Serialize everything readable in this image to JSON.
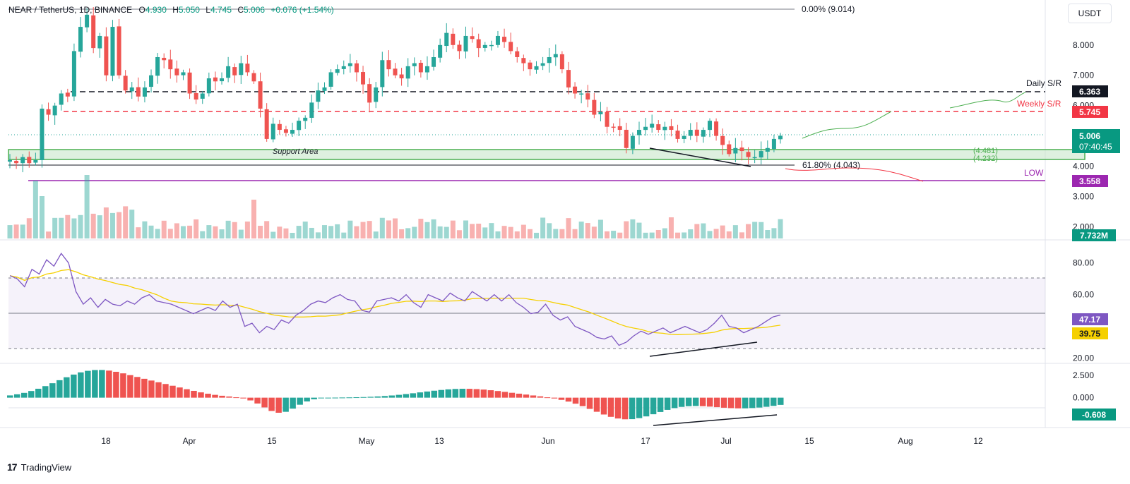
{
  "header": {
    "symbol": "NEAR / TetherUS, 1D, BINANCE",
    "o_label": "O",
    "o": "4.930",
    "h_label": "H",
    "h": "5.050",
    "l_label": "L",
    "l": "4.745",
    "c_label": "C",
    "c": "5.006",
    "change": "+0.076 (+1.54%)"
  },
  "currency_button": "USDT",
  "footer": {
    "brand": "TradingView"
  },
  "colors": {
    "up": "#26a69a",
    "down": "#ef5350",
    "teal_dark": "#089981",
    "rsi": "#7e57c2",
    "rsi_ma": "#f5d000",
    "support": "#4caf50",
    "weekly": "#f23645",
    "low": "#9c27b0"
  },
  "chart_data": [
    {
      "type": "candlestick",
      "panel": "price",
      "price_axis": [
        "8.000",
        "7.000",
        "6.000",
        "5.000",
        "4.000",
        "3.000",
        "2.000"
      ],
      "ylim": [
        1.8,
        9.3
      ],
      "x_ticks": [
        "18",
        "Apr",
        "15",
        "May",
        "13",
        "Jun",
        "17",
        "Jul",
        "15",
        "Aug",
        "12"
      ],
      "close_path": [
        4.2,
        4.1,
        4.3,
        4.1,
        4.2,
        5.9,
        5.7,
        6.0,
        6.4,
        6.3,
        7.8,
        8.6,
        9.0,
        7.9,
        8.3,
        7.0,
        8.6,
        7.0,
        6.5,
        6.6,
        6.3,
        6.6,
        7.0,
        7.6,
        7.5,
        7.2,
        7.0,
        7.1,
        6.4,
        6.2,
        6.4,
        6.9,
        6.8,
        6.9,
        7.3,
        7.0,
        7.4,
        7.1,
        6.8,
        5.9,
        4.9,
        5.4,
        5.2,
        5.1,
        5.2,
        5.5,
        5.6,
        6.1,
        6.5,
        6.6,
        7.1,
        7.2,
        7.3,
        7.4,
        7.1,
        6.7,
        6.1,
        6.6,
        7.5,
        7.2,
        7.0,
        6.9,
        7.3,
        7.4,
        7.1,
        7.3,
        7.6,
        8.0,
        8.4,
        8.0,
        7.8,
        8.3,
        8.2,
        7.9,
        8.0,
        8.0,
        8.3,
        8.1,
        7.8,
        7.6,
        7.4,
        7.2,
        7.3,
        7.4,
        7.6,
        7.7,
        7.2,
        6.6,
        6.4,
        6.4,
        6.2,
        5.7,
        5.8,
        5.3,
        5.3,
        5.2,
        4.6,
        5.0,
        5.2,
        5.3,
        5.4,
        5.2,
        5.3,
        5.2,
        4.9,
        5.0,
        5.2,
        5.0,
        5.2,
        5.5,
        5.0,
        4.7,
        4.4,
        4.6,
        4.5,
        4.3,
        4.3,
        4.5,
        4.6,
        4.9,
        5.006
      ],
      "candles": 121,
      "levels": [
        {
          "name": "fib-0",
          "label": "0.00% (9.014)",
          "value": 9.014
        },
        {
          "name": "daily-sr",
          "label": "Daily S/R",
          "value": 6.363,
          "badge": "6.363"
        },
        {
          "name": "weekly-sr",
          "label": "Weekly S/R",
          "value": 5.745,
          "badge": "5.745"
        },
        {
          "name": "current",
          "value": 5.006,
          "badge": "5.006",
          "countdown": "07:40:45"
        },
        {
          "name": "support-top",
          "label": "(4.481)",
          "value": 4.481
        },
        {
          "name": "support-bottom",
          "label": "(4.232)",
          "value": 4.232
        },
        {
          "name": "fib-618",
          "label": "61.80% (4.043)",
          "value": 4.043
        },
        {
          "name": "low",
          "label": "LOW",
          "value": 3.558,
          "badge": "3.558"
        }
      ],
      "annotations": [
        "Support Area"
      ],
      "volume_badge": "7.732M"
    },
    {
      "type": "line",
      "panel": "rsi",
      "axis": [
        "80.00",
        "60.00",
        "20.00"
      ],
      "ylim": [
        18,
        91
      ],
      "overbought": 70,
      "oversold": 30,
      "midline": 50,
      "rsi_badge": "47.17",
      "ma_badge": "39.75",
      "rsi_path": [
        72,
        70,
        65,
        76,
        73,
        82,
        78,
        86,
        80,
        62,
        54,
        58,
        52,
        57,
        54,
        53,
        56,
        54,
        58,
        60,
        56,
        55,
        54,
        52,
        50,
        48,
        50,
        52,
        50,
        56,
        52,
        54,
        40,
        42,
        36,
        40,
        38,
        44,
        42,
        47,
        50,
        54,
        56,
        55,
        58,
        60,
        57,
        56,
        50,
        49,
        56,
        57,
        58,
        56,
        60,
        55,
        52,
        60,
        58,
        56,
        61,
        58,
        56,
        62,
        59,
        56,
        60,
        56,
        60,
        55,
        52,
        48,
        49,
        54,
        47,
        44,
        46,
        40,
        38,
        36,
        33,
        32,
        34,
        28,
        30,
        34,
        37,
        35,
        37,
        39,
        36,
        38,
        40,
        38,
        36,
        38,
        42,
        47,
        40,
        39,
        36,
        38,
        40,
        43,
        46,
        47.17
      ]
    },
    {
      "type": "bar",
      "panel": "macd-histogram",
      "axis": [
        "2.500",
        "0.000"
      ],
      "ylim": [
        -3.2,
        3.3
      ],
      "histogram_badge": "-0.608"
    }
  ]
}
